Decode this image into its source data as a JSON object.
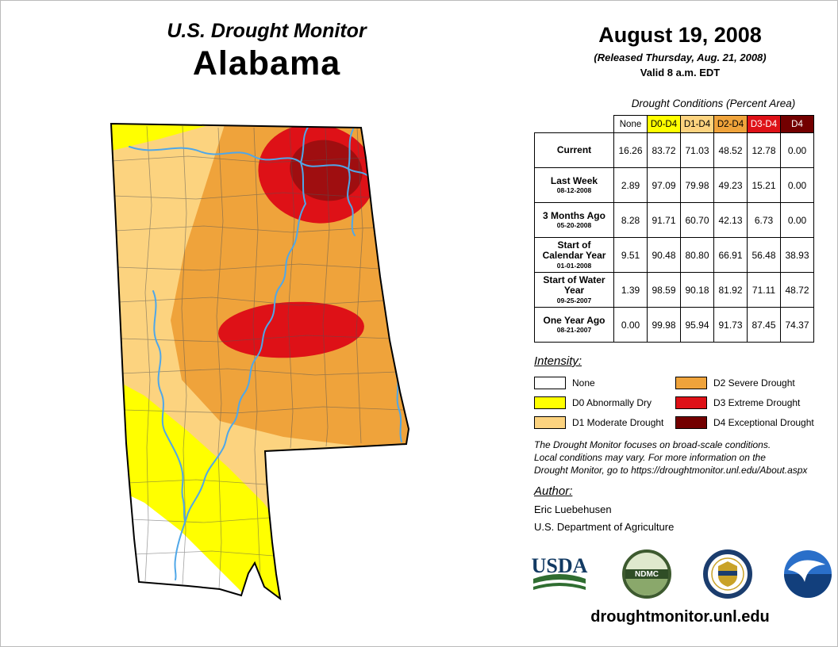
{
  "titles": {
    "monitor": "U.S. Drought Monitor",
    "state": "Alabama"
  },
  "date_block": {
    "date": "August 19, 2008",
    "released": "(Released Thursday, Aug. 21, 2008)",
    "valid": "Valid 8 a.m. EDT"
  },
  "table": {
    "caption": "Drought Conditions (Percent Area)",
    "columns": [
      {
        "label": "None",
        "bg": "#FFFFFF",
        "fg": "#000000"
      },
      {
        "label": "D0-D4",
        "bg": "#FFFF00",
        "fg": "#000000"
      },
      {
        "label": "D1-D4",
        "bg": "#FCD37F",
        "fg": "#000000"
      },
      {
        "label": "D2-D4",
        "bg": "#EFA33B",
        "fg": "#000000"
      },
      {
        "label": "D3-D4",
        "bg": "#DE1117",
        "fg": "#FFFFFF"
      },
      {
        "label": "D4",
        "bg": "#730000",
        "fg": "#FFFFFF"
      }
    ],
    "rows": [
      {
        "label": "Current",
        "date": "",
        "values": [
          "16.26",
          "83.72",
          "71.03",
          "48.52",
          "12.78",
          "0.00"
        ]
      },
      {
        "label": "Last Week",
        "date": "08-12-2008",
        "values": [
          "2.89",
          "97.09",
          "79.98",
          "49.23",
          "15.21",
          "0.00"
        ]
      },
      {
        "label": "3 Months Ago",
        "date": "05-20-2008",
        "values": [
          "8.28",
          "91.71",
          "60.70",
          "42.13",
          "6.73",
          "0.00"
        ]
      },
      {
        "label": "Start of Calendar Year",
        "date": "01-01-2008",
        "values": [
          "9.51",
          "90.48",
          "80.80",
          "66.91",
          "56.48",
          "38.93"
        ]
      },
      {
        "label": "Start of Water Year",
        "date": "09-25-2007",
        "values": [
          "1.39",
          "98.59",
          "90.18",
          "81.92",
          "71.11",
          "48.72"
        ]
      },
      {
        "label": "One Year Ago",
        "date": "08-21-2007",
        "values": [
          "0.00",
          "99.98",
          "95.94",
          "91.73",
          "87.45",
          "74.37"
        ]
      }
    ]
  },
  "legend": {
    "title": "Intensity:",
    "items": [
      {
        "label": "None",
        "color": "#FFFFFF"
      },
      {
        "label": "D0 Abnormally Dry",
        "color": "#FFFF00"
      },
      {
        "label": "D1 Moderate Drought",
        "color": "#FCD37F"
      },
      {
        "label": "D2 Severe Drought",
        "color": "#EFA33B"
      },
      {
        "label": "D3 Extreme Drought",
        "color": "#DE1117"
      },
      {
        "label": "D4 Exceptional Drought",
        "color": "#730000"
      }
    ]
  },
  "disclaimer": {
    "lines": [
      "The Drought Monitor focuses on broad-scale conditions.",
      "Local conditions may vary. For more information on the",
      "Drought Monitor, go to https://droughtmonitor.unl.edu/About.aspx"
    ]
  },
  "author": {
    "title": "Author:",
    "name": "Eric Luebehusen",
    "org": "U.S. Department of Agriculture"
  },
  "logos": {
    "usda": {
      "text": "USDA"
    },
    "ndmc": {
      "text": "NDMC"
    }
  },
  "footer": {
    "url": "droughtmonitor.unl.edu"
  },
  "map": {
    "colors": {
      "none": "#FFFFFF",
      "d0": "#FFFF00",
      "d1": "#FCD37F",
      "d2": "#EFA33B",
      "d3": "#DE1117",
      "d3_dark": "#9F0E10",
      "d4": "#730000",
      "river": "#4FA7E8",
      "county": "#555555",
      "outline": "#000000"
    }
  }
}
